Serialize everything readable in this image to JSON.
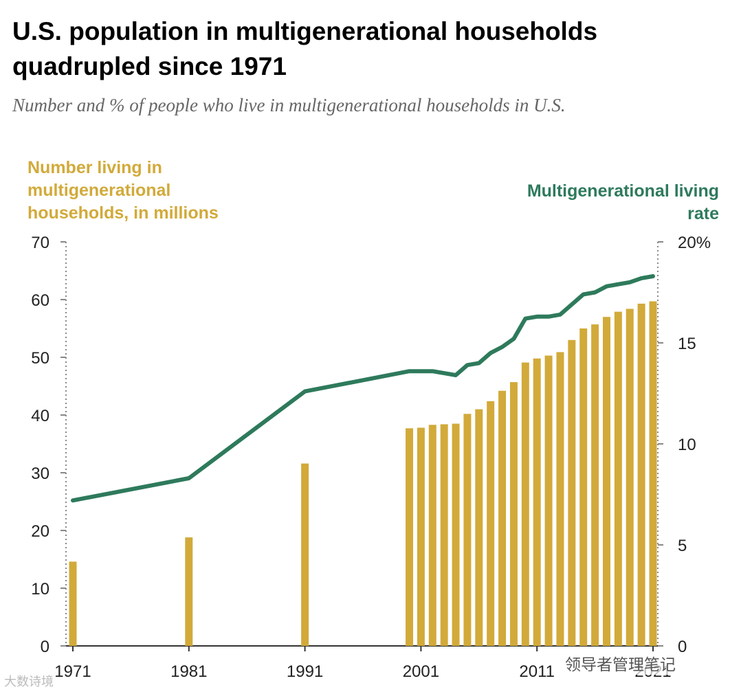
{
  "chart_data": {
    "type": "bar+line",
    "title": "U.S. population in multigenerational households quadrupled since 1971",
    "subtitle": "Number and % of people who live in multigenerational households in U.S.",
    "left_axis": {
      "label": "Number living in multigenerational households, in millions",
      "ylim": [
        0,
        70
      ],
      "ticks": [
        "0",
        "10",
        "20",
        "30",
        "40",
        "50",
        "60",
        "70"
      ]
    },
    "right_axis": {
      "label": "Multigenerational living rate",
      "ylim": [
        0,
        20
      ],
      "ticks": [
        "0",
        "5",
        "10",
        "15",
        "20%"
      ]
    },
    "x_ticks": [
      "1971",
      "1981",
      "1991",
      "2001",
      "2011",
      "2021"
    ],
    "bar_series": {
      "name": "Number living in multigenerational households, in millions",
      "color": "#d2aa3a",
      "years": [
        1971,
        1981,
        1991,
        2000,
        2001,
        2002,
        2003,
        2004,
        2005,
        2006,
        2007,
        2008,
        2009,
        2010,
        2011,
        2012,
        2013,
        2014,
        2015,
        2016,
        2017,
        2018,
        2019,
        2020,
        2021
      ],
      "values": [
        14.6,
        18.8,
        31.6,
        37.7,
        37.8,
        38.3,
        38.4,
        38.5,
        40.2,
        41.0,
        42.4,
        44.2,
        45.7,
        49.1,
        49.8,
        50.3,
        50.9,
        53.0,
        55.0,
        55.7,
        57.0,
        57.9,
        58.4,
        59.3,
        59.7
      ]
    },
    "line_series": {
      "name": "Multigenerational living rate",
      "color": "#2e7a5c",
      "years": [
        1971,
        1981,
        1991,
        2000,
        2001,
        2002,
        2003,
        2004,
        2005,
        2006,
        2007,
        2008,
        2009,
        2010,
        2011,
        2012,
        2013,
        2014,
        2015,
        2016,
        2017,
        2018,
        2019,
        2020,
        2021
      ],
      "values": [
        7.2,
        8.3,
        12.6,
        13.6,
        13.6,
        13.6,
        13.5,
        13.4,
        13.9,
        14.0,
        14.5,
        14.8,
        15.2,
        16.2,
        16.3,
        16.3,
        16.4,
        16.9,
        17.4,
        17.5,
        17.8,
        17.9,
        18.0,
        18.2,
        18.3
      ]
    }
  },
  "watermarks": {
    "left": "大数诗境",
    "right": "领导者管理笔记"
  }
}
